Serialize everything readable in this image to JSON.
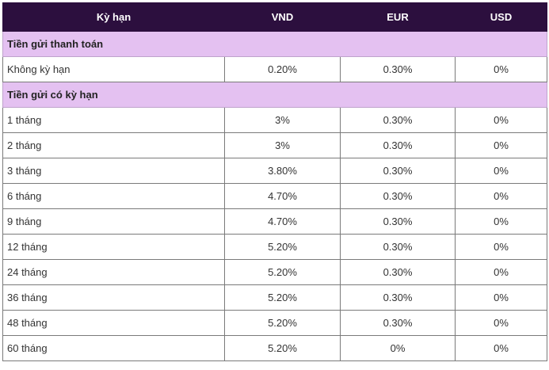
{
  "table": {
    "headers": [
      "Kỳ hạn",
      "VND",
      "EUR",
      "USD"
    ],
    "sections": [
      {
        "title": "Tiền gửi thanh toán",
        "rows": [
          {
            "term": "Không kỳ hạn",
            "vnd": "0.20%",
            "eur": "0.30%",
            "usd": "0%"
          }
        ]
      },
      {
        "title": "Tiền gửi có kỳ hạn",
        "rows": [
          {
            "term": "1 tháng",
            "vnd": "3%",
            "eur": "0.30%",
            "usd": "0%"
          },
          {
            "term": "2 tháng",
            "vnd": "3%",
            "eur": "0.30%",
            "usd": "0%"
          },
          {
            "term": "3 tháng",
            "vnd": "3.80%",
            "eur": "0.30%",
            "usd": "0%"
          },
          {
            "term": "6 tháng",
            "vnd": "4.70%",
            "eur": "0.30%",
            "usd": "0%"
          },
          {
            "term": "9 tháng",
            "vnd": "4.70%",
            "eur": "0.30%",
            "usd": "0%"
          },
          {
            "term": "12 tháng",
            "vnd": "5.20%",
            "eur": "0.30%",
            "usd": "0%"
          },
          {
            "term": "24 tháng",
            "vnd": "5.20%",
            "eur": "0.30%",
            "usd": "0%"
          },
          {
            "term": "36 tháng",
            "vnd": "5.20%",
            "eur": "0.30%",
            "usd": "0%"
          },
          {
            "term": "48 tháng",
            "vnd": "5.20%",
            "eur": "0.30%",
            "usd": "0%"
          },
          {
            "term": "60 tháng",
            "vnd": "5.20%",
            "eur": "0%",
            "usd": "0%"
          }
        ]
      }
    ]
  },
  "colors": {
    "header_bg": "#2c0f3e",
    "section_bg": "#e4c1f1"
  }
}
